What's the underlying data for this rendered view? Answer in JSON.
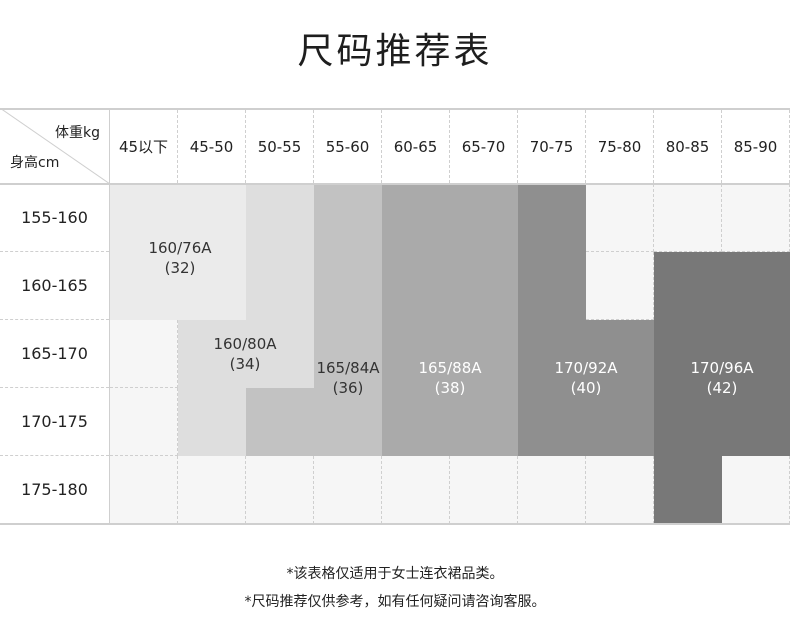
{
  "title": "尺码推荐表",
  "corner": {
    "weight_label": "体重kg",
    "height_label": "身高cm"
  },
  "weight_columns": [
    "45以下",
    "45-50",
    "50-55",
    "55-60",
    "60-65",
    "65-70",
    "70-75",
    "75-80",
    "80-85",
    "85-90"
  ],
  "height_rows": [
    "155-160",
    "160-165",
    "165-170",
    "170-175",
    "175-180"
  ],
  "sizes": [
    {
      "name": "160/76A",
      "eu": "(32)",
      "color": "#ebebeb"
    },
    {
      "name": "160/80A",
      "eu": "(34)",
      "color": "#dedede"
    },
    {
      "name": "165/84A",
      "eu": "(36)",
      "color": "#c2c2c2"
    },
    {
      "name": "165/88A",
      "eu": "(38)",
      "color": "#aaaaaa"
    },
    {
      "name": "170/92A",
      "eu": "(40)",
      "color": "#8f8f8f"
    },
    {
      "name": "170/96A",
      "eu": "(42)",
      "color": "#787878"
    }
  ],
  "notes": [
    "*该表格仅适用于女士连衣裙品类。",
    "*尺码推荐仅供参考，如有任何疑问请咨询客服。"
  ]
}
